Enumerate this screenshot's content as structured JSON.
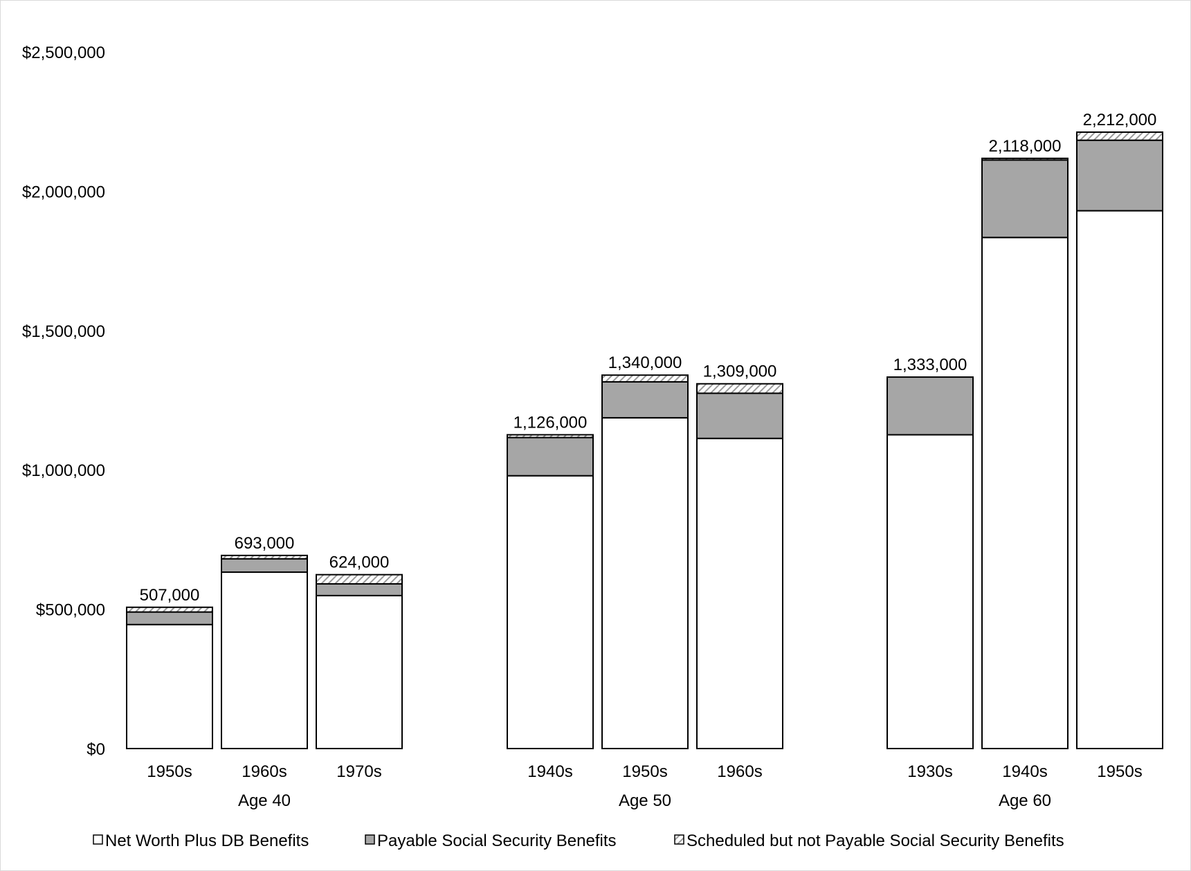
{
  "chart_data": {
    "type": "bar",
    "stacked": true,
    "title": "",
    "xlabel": "",
    "ylabel": "",
    "ylim": [
      0,
      2500000
    ],
    "y_ticks": [
      0,
      500000,
      1000000,
      1500000,
      2000000,
      2500000
    ],
    "y_tick_labels": [
      "$0",
      "$500,000",
      "$1,000,000",
      "$1,500,000",
      "$2,000,000",
      "$2,500,000"
    ],
    "grid": false,
    "legend_position": "bottom",
    "groups": [
      {
        "label": "Age 40",
        "categories": [
          "1950s",
          "1960s",
          "1970s"
        ]
      },
      {
        "label": "Age 50",
        "categories": [
          "1940s",
          "1950s",
          "1960s"
        ]
      },
      {
        "label": "Age 60",
        "categories": [
          "1930s",
          "1940s",
          "1950s"
        ]
      }
    ],
    "series": [
      {
        "name": "Net Worth Plus DB Benefits",
        "fill": "#ffffff",
        "values": [
          [
            445000,
            633000,
            549000
          ],
          [
            979000,
            1187000,
            1113000
          ],
          [
            1126000,
            1834000,
            1930000
          ]
        ]
      },
      {
        "name": "Payable Social Security Benefits",
        "fill": "#a6a6a6",
        "values": [
          [
            45000,
            48000,
            42000
          ],
          [
            137000,
            129000,
            162000
          ],
          [
            207000,
            278000,
            253000
          ]
        ]
      },
      {
        "name": "Scheduled but not Payable Social Security Benefits",
        "fill": "hatch",
        "values": [
          [
            17000,
            12000,
            33000
          ],
          [
            10000,
            24000,
            34000
          ],
          [
            0,
            6000,
            29000
          ]
        ]
      }
    ],
    "totals": [
      [
        507000,
        693000,
        624000
      ],
      [
        1126000,
        1340000,
        1309000
      ],
      [
        1333000,
        2118000,
        2212000
      ]
    ],
    "total_labels": [
      [
        "507,000",
        "693,000",
        "624,000"
      ],
      [
        "1,126,000",
        "1,340,000",
        "1,309,000"
      ],
      [
        "1,333,000",
        "2,118,000",
        "2,212,000"
      ]
    ]
  }
}
